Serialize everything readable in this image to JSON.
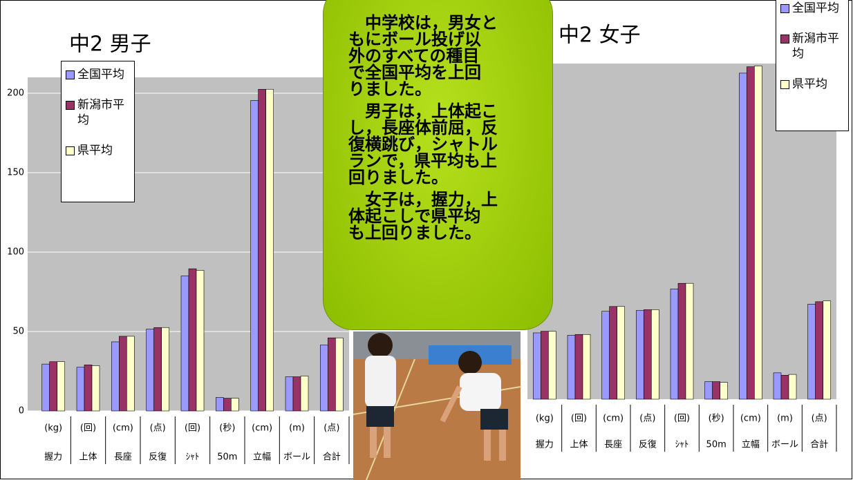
{
  "chart_data": [
    {
      "type": "bar",
      "title": "中2  男子",
      "categories": [
        "握力",
        "上体",
        "長座",
        "反復",
        "ｼｬﾄ",
        "50m",
        "立幅",
        "ボール",
        "合計"
      ],
      "category_units": [
        "(kg)",
        "(回)",
        "(cm)",
        "(点)",
        "(回)",
        "(秒)",
        "(cm)",
        "(m)",
        "(点)"
      ],
      "series": [
        {
          "name": "全国平均",
          "color": "#9999ff",
          "values": [
            29.5,
            27.5,
            43.5,
            51.5,
            85,
            8.5,
            195.5,
            21.5,
            41.5
          ]
        },
        {
          "name": "新潟市平均",
          "color": "#993366",
          "values": [
            31,
            29,
            47,
            52.5,
            89.5,
            8,
            202.5,
            21.5,
            46
          ]
        },
        {
          "name": "県平均",
          "color": "#ffffcc",
          "values": [
            31,
            28.5,
            47,
            52.5,
            88.5,
            8,
            202.5,
            22,
            46
          ]
        }
      ],
      "ylim": [
        0,
        210
      ],
      "yticks": [
        0,
        50,
        100,
        150,
        200
      ],
      "grid": true
    },
    {
      "type": "bar",
      "title": "中2  女子",
      "categories": [
        "握力",
        "上体",
        "長座",
        "反復",
        "ｼｬﾄ",
        "50m",
        "立幅",
        "ボール",
        "合計"
      ],
      "category_units": [
        "(kg)",
        "(回)",
        "(cm)",
        "(点)",
        "(回)",
        "(秒)",
        "(cm)",
        "(m)",
        "(点)"
      ],
      "series": [
        {
          "name": "全国平均",
          "color": "#9999ff",
          "values": [
            41.5,
            40,
            55,
            55.5,
            69,
            11,
            204,
            16.5,
            59.5
          ]
        },
        {
          "name": "新潟市平均",
          "color": "#993366",
          "values": [
            42.5,
            40.5,
            58,
            56,
            72.5,
            11,
            208,
            15,
            61
          ]
        },
        {
          "name": "県平均",
          "color": "#ffffcc",
          "values": [
            42.5,
            40.5,
            58,
            56,
            72.5,
            10.5,
            208.5,
            15.5,
            61.5
          ]
        }
      ],
      "ylim": [
        0,
        210
      ],
      "grid": false
    }
  ],
  "callout": {
    "paragraphs": [
      [
        "中学校は，男女と",
        "もにボール投げ以",
        "外のすべての種目",
        "で全国平均を上回",
        "りました。"
      ],
      [
        "男子は，上体起こ",
        "し，長座体前屈，反",
        "復横跳び，シャトル",
        "ランで，県平均も上",
        "回りました。"
      ],
      [
        "女子は，握力，上",
        "体起こしで県平均",
        "も上回りました。"
      ]
    ]
  }
}
